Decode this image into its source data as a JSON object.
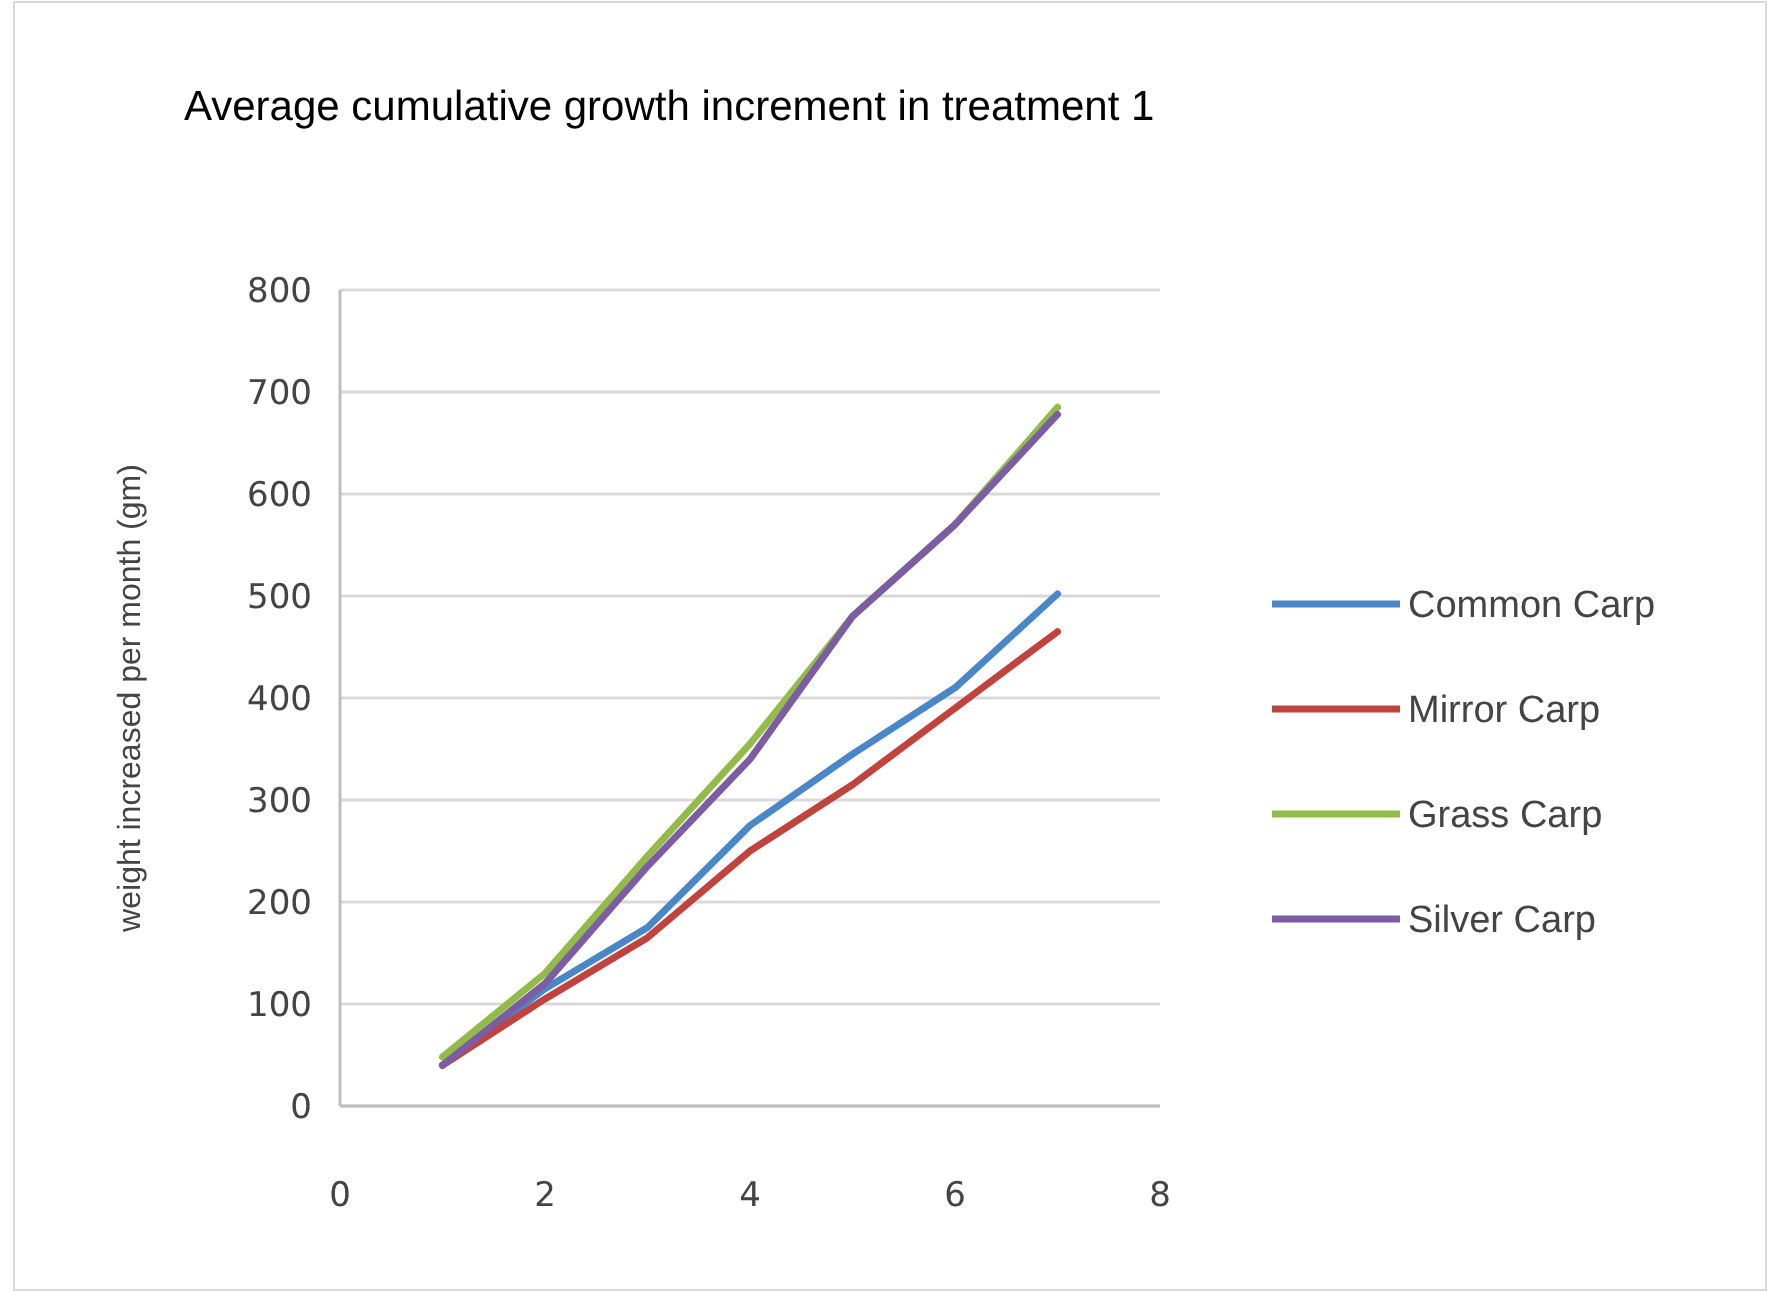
{
  "chart_data": {
    "type": "line",
    "title": "Average cumulative growth increment in treatment 1",
    "ylabel": "weight increased per month (gm)",
    "x": [
      1,
      2,
      3,
      4,
      5,
      6,
      7
    ],
    "series": [
      {
        "name": "Common Carp",
        "color": "#4a87c8",
        "values": [
          40,
          115,
          175,
          275,
          345,
          410,
          502
        ]
      },
      {
        "name": "Mirror Carp",
        "color": "#c0433e",
        "values": [
          40,
          105,
          165,
          250,
          315,
          390,
          465
        ]
      },
      {
        "name": "Grass Carp",
        "color": "#93bb4a",
        "values": [
          48,
          130,
          245,
          355,
          480,
          570,
          685
        ]
      },
      {
        "name": "Silver Carp",
        "color": "#7c5da3",
        "values": [
          40,
          120,
          235,
          340,
          480,
          570,
          678
        ]
      }
    ],
    "xlim": [
      0,
      8
    ],
    "xticks": [
      0,
      2,
      4,
      6,
      8
    ],
    "ylim": [
      0,
      800
    ],
    "yticks": [
      0,
      100,
      200,
      300,
      400,
      500,
      600,
      700,
      800
    ],
    "grid": "y",
    "legend": "right",
    "marker": "none",
    "line_style": "solid"
  }
}
